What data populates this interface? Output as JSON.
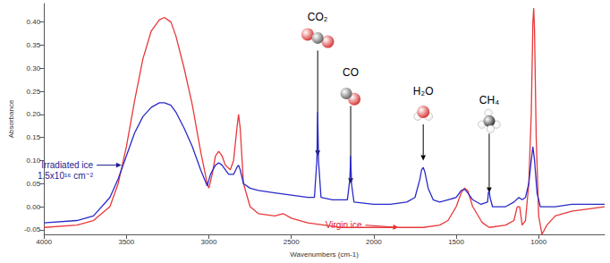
{
  "chart_data": {
    "type": "line",
    "x_label": "Wavenumbers (cm-1)",
    "y_label": "Absorbance",
    "xlim": [
      4000,
      600
    ],
    "xticks": [
      4000,
      3500,
      3000,
      2500,
      2000,
      1500,
      1000
    ],
    "ylim": [
      -0.06,
      0.44
    ],
    "yticks": [
      -0.05,
      {
        "value": 0,
        "label": "0.00"
      },
      0.05,
      {
        "value": 0.1,
        "label": "0.10"
      },
      0.15,
      {
        "value": 0.2,
        "label": "0.20"
      },
      0.25,
      {
        "value": 0.3,
        "label": "0.30"
      },
      0.35,
      {
        "value": 0.4,
        "label": "0.40"
      }
    ],
    "grid": false,
    "legend": false,
    "series": [
      {
        "name": "Virgin ice",
        "color": "#e8383b",
        "x": [
          4000,
          3800,
          3700,
          3600,
          3550,
          3500,
          3450,
          3400,
          3350,
          3300,
          3270,
          3230,
          3200,
          3150,
          3100,
          3050,
          3010,
          3000,
          2980,
          2960,
          2940,
          2920,
          2900,
          2870,
          2850,
          2830,
          2820,
          2810,
          2790,
          2750,
          2700,
          2600,
          2550,
          2500,
          2400,
          2300,
          2200,
          2100,
          2000,
          1900,
          1800,
          1700,
          1600,
          1550,
          1500,
          1470,
          1450,
          1430,
          1400,
          1350,
          1340,
          1300,
          1200,
          1150,
          1130,
          1115,
          1100,
          1080,
          1060,
          1045,
          1035,
          1030,
          1025,
          1015,
          1000,
          980,
          950,
          900,
          800,
          700,
          600
        ],
        "values": [
          -0.045,
          -0.04,
          -0.03,
          0.0,
          0.05,
          0.13,
          0.23,
          0.32,
          0.38,
          0.405,
          0.41,
          0.4,
          0.37,
          0.3,
          0.22,
          0.12,
          0.05,
          0.04,
          0.07,
          0.11,
          0.12,
          0.11,
          0.09,
          0.08,
          0.1,
          0.17,
          0.2,
          0.17,
          0.05,
          0.0,
          -0.015,
          -0.02,
          -0.015,
          -0.025,
          -0.035,
          -0.04,
          -0.045,
          -0.045,
          -0.045,
          -0.045,
          -0.045,
          -0.045,
          -0.04,
          -0.03,
          0.0,
          0.03,
          0.04,
          0.035,
          0.0,
          -0.03,
          -0.035,
          -0.045,
          -0.04,
          -0.03,
          0.0,
          0.0,
          -0.04,
          -0.03,
          0.05,
          0.2,
          0.4,
          0.43,
          0.38,
          0.15,
          -0.02,
          -0.06,
          -0.04,
          -0.02,
          -0.01,
          -0.005,
          0.0
        ]
      },
      {
        "name": "Irradiated ice",
        "color": "#2a2ac8",
        "x": [
          4000,
          3800,
          3700,
          3600,
          3550,
          3500,
          3450,
          3400,
          3350,
          3300,
          3270,
          3230,
          3200,
          3150,
          3100,
          3050,
          3010,
          2990,
          2960,
          2940,
          2920,
          2880,
          2850,
          2830,
          2820,
          2810,
          2790,
          2750,
          2700,
          2600,
          2500,
          2400,
          2360,
          2345,
          2340,
          2335,
          2320,
          2250,
          2160,
          2145,
          2140,
          2135,
          2120,
          2000,
          1900,
          1800,
          1750,
          1720,
          1710,
          1700,
          1690,
          1670,
          1640,
          1600,
          1550,
          1500,
          1470,
          1450,
          1430,
          1400,
          1350,
          1310,
          1305,
          1300,
          1295,
          1280,
          1200,
          1150,
          1120,
          1100,
          1080,
          1060,
          1045,
          1035,
          1025,
          1010,
          990,
          950,
          900,
          800,
          700,
          600
        ],
        "values": [
          -0.035,
          -0.03,
          -0.02,
          0.02,
          0.06,
          0.11,
          0.16,
          0.195,
          0.215,
          0.225,
          0.225,
          0.22,
          0.205,
          0.17,
          0.13,
          0.08,
          0.045,
          0.07,
          0.09,
          0.095,
          0.09,
          0.07,
          0.07,
          0.085,
          0.09,
          0.08,
          0.05,
          0.04,
          0.035,
          0.03,
          0.025,
          0.02,
          0.02,
          0.1,
          0.205,
          0.1,
          0.02,
          0.015,
          0.015,
          0.06,
          0.11,
          0.05,
          0.01,
          0.005,
          0.005,
          0.01,
          0.02,
          0.06,
          0.08,
          0.085,
          0.075,
          0.04,
          0.015,
          0.01,
          0.015,
          0.02,
          0.035,
          0.038,
          0.03,
          0.015,
          0.005,
          0.01,
          0.03,
          0.035,
          0.02,
          0.0,
          0.0,
          0.01,
          0.02,
          0.015,
          0.02,
          0.05,
          0.1,
          0.13,
          0.1,
          0.03,
          0.0,
          0.0,
          0.0,
          0.005,
          0.005,
          0.005
        ]
      }
    ],
    "annotations": [
      {
        "text": [
          "CO₂"
        ],
        "x": 2340,
        "y": 0.11,
        "text_x": 2340,
        "text_y": 0.41,
        "color": "#000000"
      },
      {
        "text": [
          "CO"
        ],
        "x": 2140,
        "y": 0.05,
        "text_x": 2140,
        "text_y": 0.29,
        "color": "#000000"
      },
      {
        "text": [
          "H₂O"
        ],
        "x": 1700,
        "y": 0.1,
        "text_x": 1700,
        "text_y": 0.25,
        "color": "#000000"
      },
      {
        "text": [
          "CH₄"
        ],
        "x": 1300,
        "y": 0.03,
        "text_x": 1300,
        "text_y": 0.23,
        "color": "#000000"
      },
      {
        "text": [
          "Irradiated ice",
          "1.5x10¹⁶ cm⁻²"
        ],
        "x": 3530,
        "y": 0.09,
        "text_x": 3680,
        "text_y": 0.09,
        "color": "#1c1c8f"
      },
      {
        "text": [
          "Virgin ice"
        ],
        "x": 1850,
        "y": -0.045,
        "text_x": 2050,
        "text_y": -0.04,
        "color": "#e0202a"
      }
    ]
  }
}
